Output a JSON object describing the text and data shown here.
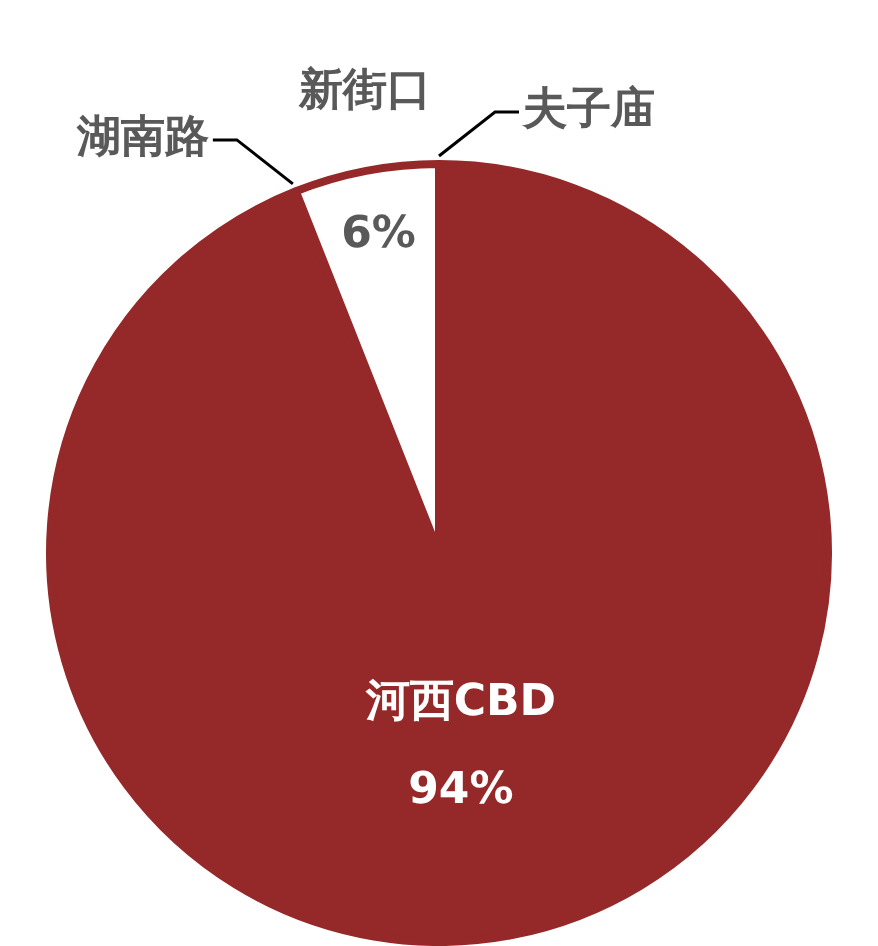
{
  "chart_data": {
    "type": "pie",
    "categories": [
      "河西CBD",
      "湖南路",
      "新街口",
      "夫子庙"
    ],
    "values": [
      94,
      0,
      6,
      0
    ],
    "colors": [
      "#952828",
      "#952828",
      "#ffffff",
      "#952828"
    ],
    "value_labels": [
      "94%",
      null,
      "6%",
      null
    ]
  }
}
